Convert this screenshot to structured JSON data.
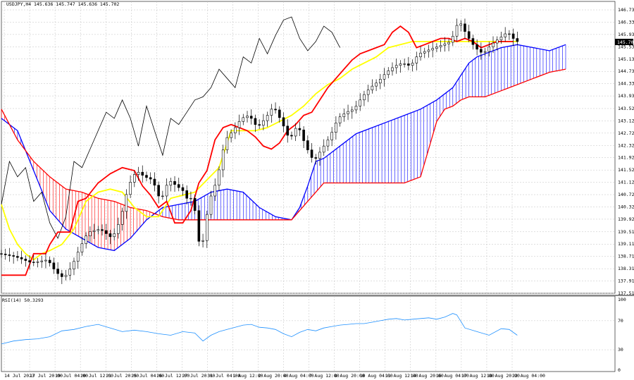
{
  "header": {
    "symbol_label": "USDJPY,H4",
    "ohlc_values": "145.636 145.747 145.636 145.702"
  },
  "rsi_header": "RSI(14) 50.3293",
  "price_marker": "145.702",
  "colors": {
    "tenkan": "#ff0000",
    "kijun": "#ffff00",
    "chikou": "#000000",
    "cloud_bull": "#0000ff",
    "cloud_bear": "#ff0000",
    "rsi_line": "#1e90ff",
    "grid": "#c0c0c0",
    "price_marker_bg": "#000000"
  },
  "chart_data": [
    {
      "type": "candlestick",
      "title": "USDJPY,H4",
      "indicators": [
        "Ichimoku Kinko Hyo",
        "tenkan-sen",
        "kijun-sen",
        "chikou span",
        "senkou span A",
        "senkou span B"
      ],
      "y_ticks": [
        "146.730",
        "146.330",
        "145.930",
        "145.530",
        "145.130",
        "144.730",
        "144.330",
        "143.930",
        "143.520",
        "143.120",
        "142.720",
        "142.320",
        "141.920",
        "141.520",
        "141.120",
        "140.720",
        "140.320",
        "139.920",
        "139.510",
        "139.110",
        "138.710",
        "138.310",
        "137.910",
        "137.510"
      ],
      "ylim": [
        137.51,
        146.73
      ],
      "x_ticks": [
        "14 Jul 2023",
        "17 Jul 20:00",
        "19 Jul 04:00",
        "20 Jul 12:00",
        "21 Jul 20:00",
        "25 Jul 04:00",
        "26 Jul 12:00",
        "27 Jul 20:00",
        "31 Jul 04:00",
        "1 Aug 12:00",
        "2 Aug 20:00",
        "4 Aug 04:00",
        "7 Aug 12:00",
        "8 Aug 20:00",
        "10 Aug 04:00",
        "11 Aug 12:00",
        "14 Aug 20:00",
        "16 Aug 04:00",
        "17 Aug 12:00",
        "18 Aug 20:00",
        "22 Aug 04:00"
      ],
      "last_price": 145.702,
      "close_points": [
        [
          0,
          138.8
        ],
        [
          4,
          138.7
        ],
        [
          8,
          138.5
        ],
        [
          12,
          138.6
        ],
        [
          14,
          138.2
        ],
        [
          16,
          138.0
        ],
        [
          18,
          138.4
        ],
        [
          20,
          139.0
        ],
        [
          22,
          139.5
        ],
        [
          25,
          139.6
        ],
        [
          28,
          139.3
        ],
        [
          30,
          139.9
        ],
        [
          32,
          141.0
        ],
        [
          34,
          141.5
        ],
        [
          36,
          141.3
        ],
        [
          38,
          141.2
        ],
        [
          40,
          140.5
        ],
        [
          42,
          141.2
        ],
        [
          44,
          141.0
        ],
        [
          46,
          140.8
        ],
        [
          47,
          140.4
        ],
        [
          48,
          140.8
        ],
        [
          49,
          139.6
        ],
        [
          50,
          138.8
        ],
        [
          52,
          140.5
        ],
        [
          54,
          141.2
        ],
        [
          56,
          142.5
        ],
        [
          58,
          142.8
        ],
        [
          60,
          143.2
        ],
        [
          62,
          143.3
        ],
        [
          64,
          142.9
        ],
        [
          66,
          143.2
        ],
        [
          68,
          143.6
        ],
        [
          70,
          143.1
        ],
        [
          72,
          142.5
        ],
        [
          74,
          143.0
        ],
        [
          76,
          142.3
        ],
        [
          78,
          141.8
        ],
        [
          80,
          142.2
        ],
        [
          82,
          142.6
        ],
        [
          84,
          143.2
        ],
        [
          86,
          143.4
        ],
        [
          88,
          143.5
        ],
        [
          90,
          143.9
        ],
        [
          92,
          144.2
        ],
        [
          94,
          144.4
        ],
        [
          96,
          144.7
        ],
        [
          98,
          144.9
        ],
        [
          100,
          145.0
        ],
        [
          102,
          144.9
        ],
        [
          104,
          145.3
        ],
        [
          106,
          145.4
        ],
        [
          108,
          145.5
        ],
        [
          110,
          145.6
        ],
        [
          112,
          145.7
        ],
        [
          114,
          146.4
        ],
        [
          116,
          145.9
        ],
        [
          118,
          145.5
        ],
        [
          120,
          145.3
        ],
        [
          122,
          145.6
        ],
        [
          124,
          145.8
        ],
        [
          126,
          146.0
        ],
        [
          127,
          145.9
        ],
        [
          128,
          145.7
        ]
      ],
      "tenkan_points": [
        [
          0,
          138.1
        ],
        [
          6,
          138.1
        ],
        [
          8,
          138.8
        ],
        [
          11,
          138.8
        ],
        [
          12,
          139.1
        ],
        [
          14,
          139.5
        ],
        [
          17,
          139.5
        ],
        [
          19,
          140.5
        ],
        [
          21,
          140.6
        ],
        [
          24,
          141.1
        ],
        [
          27,
          141.4
        ],
        [
          30,
          141.6
        ],
        [
          33,
          141.5
        ],
        [
          35,
          141.0
        ],
        [
          37,
          140.7
        ],
        [
          39,
          140.3
        ],
        [
          41,
          140.5
        ],
        [
          43,
          139.8
        ],
        [
          45,
          139.8
        ],
        [
          47,
          140.2
        ],
        [
          49,
          141.1
        ],
        [
          51,
          141.5
        ],
        [
          53,
          142.5
        ],
        [
          55,
          142.9
        ],
        [
          57,
          143.0
        ],
        [
          59,
          142.9
        ],
        [
          61,
          142.8
        ],
        [
          63,
          142.6
        ],
        [
          65,
          142.3
        ],
        [
          67,
          142.2
        ],
        [
          69,
          142.4
        ],
        [
          71,
          142.8
        ],
        [
          73,
          143.0
        ],
        [
          75,
          143.3
        ],
        [
          77,
          143.4
        ],
        [
          79,
          143.8
        ],
        [
          81,
          144.2
        ],
        [
          83,
          144.5
        ],
        [
          85,
          144.8
        ],
        [
          87,
          145.1
        ],
        [
          89,
          145.3
        ],
        [
          91,
          145.4
        ],
        [
          93,
          145.5
        ],
        [
          95,
          145.6
        ],
        [
          97,
          146.0
        ],
        [
          99,
          146.2
        ],
        [
          101,
          146.0
        ],
        [
          103,
          145.5
        ],
        [
          105,
          145.6
        ],
        [
          107,
          145.7
        ],
        [
          109,
          145.8
        ],
        [
          111,
          145.8
        ],
        [
          113,
          145.7
        ],
        [
          115,
          145.8
        ],
        [
          117,
          145.7
        ],
        [
          119,
          145.5
        ],
        [
          121,
          145.6
        ],
        [
          123,
          145.7
        ],
        [
          125,
          145.7
        ],
        [
          127,
          145.7
        ]
      ],
      "kijun_points": [
        [
          0,
          140.4
        ],
        [
          2,
          139.6
        ],
        [
          4,
          139.1
        ],
        [
          6,
          138.8
        ],
        [
          8,
          138.6
        ],
        [
          10,
          138.8
        ],
        [
          12,
          138.9
        ],
        [
          15,
          139.1
        ],
        [
          18,
          139.6
        ],
        [
          21,
          140.5
        ],
        [
          24,
          140.8
        ],
        [
          27,
          140.9
        ],
        [
          30,
          140.8
        ],
        [
          33,
          140.3
        ],
        [
          36,
          140.0
        ],
        [
          39,
          140.0
        ],
        [
          42,
          140.6
        ],
        [
          45,
          140.7
        ],
        [
          48,
          140.8
        ],
        [
          51,
          141.2
        ],
        [
          54,
          141.6
        ],
        [
          57,
          142.8
        ],
        [
          60,
          142.8
        ],
        [
          63,
          142.8
        ],
        [
          66,
          142.9
        ],
        [
          69,
          143.1
        ],
        [
          72,
          143.3
        ],
        [
          75,
          143.6
        ],
        [
          78,
          144.0
        ],
        [
          81,
          144.3
        ],
        [
          84,
          144.5
        ],
        [
          87,
          144.8
        ],
        [
          90,
          145.0
        ],
        [
          93,
          145.2
        ],
        [
          96,
          145.5
        ],
        [
          99,
          145.6
        ],
        [
          102,
          145.7
        ],
        [
          105,
          145.7
        ],
        [
          108,
          145.7
        ],
        [
          111,
          145.7
        ],
        [
          114,
          145.7
        ],
        [
          117,
          145.7
        ],
        [
          120,
          145.7
        ],
        [
          123,
          145.7
        ],
        [
          126,
          145.7
        ],
        [
          128,
          145.7
        ]
      ],
      "chikou_points": [
        [
          0,
          140.4
        ],
        [
          2,
          141.8
        ],
        [
          4,
          141.3
        ],
        [
          6,
          141.6
        ],
        [
          8,
          140.5
        ],
        [
          10,
          140.8
        ],
        [
          12,
          139.8
        ],
        [
          14,
          139.3
        ],
        [
          16,
          140.0
        ],
        [
          18,
          141.8
        ],
        [
          20,
          141.6
        ],
        [
          22,
          142.2
        ],
        [
          24,
          142.8
        ],
        [
          26,
          143.4
        ],
        [
          28,
          143.2
        ],
        [
          30,
          143.8
        ],
        [
          32,
          143.2
        ],
        [
          34,
          142.3
        ],
        [
          36,
          143.6
        ],
        [
          38,
          142.8
        ],
        [
          40,
          142.0
        ],
        [
          42,
          143.2
        ],
        [
          44,
          143.0
        ],
        [
          46,
          143.4
        ],
        [
          48,
          143.8
        ],
        [
          50,
          143.9
        ],
        [
          52,
          144.2
        ],
        [
          54,
          144.8
        ],
        [
          56,
          144.5
        ],
        [
          58,
          144.2
        ],
        [
          60,
          145.2
        ],
        [
          62,
          145.0
        ],
        [
          64,
          145.8
        ],
        [
          66,
          145.3
        ],
        [
          68,
          145.9
        ],
        [
          70,
          146.4
        ],
        [
          72,
          146.5
        ],
        [
          74,
          145.8
        ],
        [
          76,
          145.4
        ],
        [
          78,
          145.7
        ],
        [
          80,
          146.2
        ],
        [
          82,
          146.0
        ],
        [
          84,
          145.5
        ]
      ],
      "senkou_a_points": [
        [
          0,
          143.2
        ],
        [
          4,
          142.8
        ],
        [
          8,
          141.5
        ],
        [
          12,
          140.2
        ],
        [
          16,
          139.6
        ],
        [
          20,
          139.3
        ],
        [
          24,
          139.0
        ],
        [
          28,
          138.9
        ],
        [
          32,
          139.3
        ],
        [
          36,
          139.9
        ],
        [
          40,
          140.3
        ],
        [
          44,
          140.4
        ],
        [
          48,
          140.5
        ],
        [
          52,
          140.8
        ],
        [
          56,
          140.9
        ],
        [
          60,
          140.8
        ],
        [
          64,
          140.3
        ],
        [
          68,
          140.0
        ],
        [
          72,
          139.9
        ],
        [
          74,
          140.3
        ],
        [
          76,
          141.0
        ],
        [
          78,
          141.8
        ],
        [
          80,
          141.9
        ],
        [
          84,
          142.3
        ],
        [
          88,
          142.7
        ],
        [
          92,
          142.9
        ],
        [
          96,
          143.1
        ],
        [
          100,
          143.3
        ],
        [
          104,
          143.5
        ],
        [
          108,
          143.8
        ],
        [
          112,
          144.2
        ],
        [
          114,
          144.6
        ],
        [
          116,
          145.0
        ],
        [
          118,
          145.2
        ],
        [
          120,
          145.3
        ],
        [
          124,
          145.5
        ],
        [
          128,
          145.6
        ],
        [
          132,
          145.5
        ],
        [
          136,
          145.4
        ],
        [
          140,
          145.6
        ]
      ],
      "senkou_b_points": [
        [
          0,
          143.5
        ],
        [
          4,
          142.5
        ],
        [
          8,
          141.8
        ],
        [
          12,
          141.3
        ],
        [
          16,
          140.9
        ],
        [
          20,
          140.8
        ],
        [
          24,
          140.6
        ],
        [
          28,
          140.5
        ],
        [
          32,
          140.3
        ],
        [
          36,
          140.2
        ],
        [
          40,
          140.0
        ],
        [
          44,
          139.9
        ],
        [
          48,
          139.9
        ],
        [
          52,
          139.9
        ],
        [
          56,
          139.9
        ],
        [
          60,
          139.9
        ],
        [
          64,
          139.9
        ],
        [
          68,
          139.9
        ],
        [
          72,
          139.9
        ],
        [
          74,
          140.2
        ],
        [
          76,
          140.5
        ],
        [
          78,
          140.8
        ],
        [
          80,
          141.1
        ],
        [
          84,
          141.1
        ],
        [
          88,
          141.1
        ],
        [
          92,
          141.1
        ],
        [
          96,
          141.1
        ],
        [
          100,
          141.1
        ],
        [
          104,
          141.3
        ],
        [
          106,
          142.2
        ],
        [
          108,
          143.1
        ],
        [
          110,
          143.5
        ],
        [
          112,
          143.6
        ],
        [
          114,
          143.8
        ],
        [
          116,
          143.9
        ],
        [
          118,
          143.9
        ],
        [
          120,
          143.9
        ],
        [
          124,
          144.1
        ],
        [
          128,
          144.3
        ],
        [
          132,
          144.5
        ],
        [
          136,
          144.7
        ],
        [
          140,
          144.8
        ]
      ]
    },
    {
      "type": "line",
      "title": "RSI(14) 50.3293",
      "y_ticks": [
        "100",
        "70",
        "30",
        "0"
      ],
      "ylim": [
        0,
        100
      ],
      "rsi_points": [
        [
          0,
          38
        ],
        [
          3,
          42
        ],
        [
          6,
          44
        ],
        [
          9,
          45
        ],
        [
          12,
          48
        ],
        [
          15,
          56
        ],
        [
          18,
          58
        ],
        [
          21,
          62
        ],
        [
          24,
          65
        ],
        [
          27,
          60
        ],
        [
          30,
          55
        ],
        [
          33,
          57
        ],
        [
          36,
          55
        ],
        [
          39,
          52
        ],
        [
          42,
          50
        ],
        [
          45,
          55
        ],
        [
          48,
          53
        ],
        [
          50,
          42
        ],
        [
          52,
          50
        ],
        [
          54,
          55
        ],
        [
          56,
          58
        ],
        [
          58,
          61
        ],
        [
          60,
          64
        ],
        [
          62,
          65
        ],
        [
          64,
          61
        ],
        [
          66,
          60
        ],
        [
          68,
          58
        ],
        [
          70,
          52
        ],
        [
          72,
          48
        ],
        [
          74,
          54
        ],
        [
          76,
          58
        ],
        [
          78,
          56
        ],
        [
          80,
          60
        ],
        [
          82,
          62
        ],
        [
          84,
          64
        ],
        [
          86,
          65
        ],
        [
          88,
          66
        ],
        [
          90,
          66
        ],
        [
          92,
          68
        ],
        [
          94,
          70
        ],
        [
          96,
          72
        ],
        [
          98,
          73
        ],
        [
          100,
          71
        ],
        [
          102,
          72
        ],
        [
          104,
          73
        ],
        [
          106,
          74
        ],
        [
          108,
          72
        ],
        [
          110,
          75
        ],
        [
          112,
          80
        ],
        [
          113,
          78
        ],
        [
          115,
          60
        ],
        [
          118,
          55
        ],
        [
          121,
          50
        ],
        [
          124,
          59
        ],
        [
          126,
          58
        ],
        [
          128,
          50
        ]
      ]
    }
  ]
}
